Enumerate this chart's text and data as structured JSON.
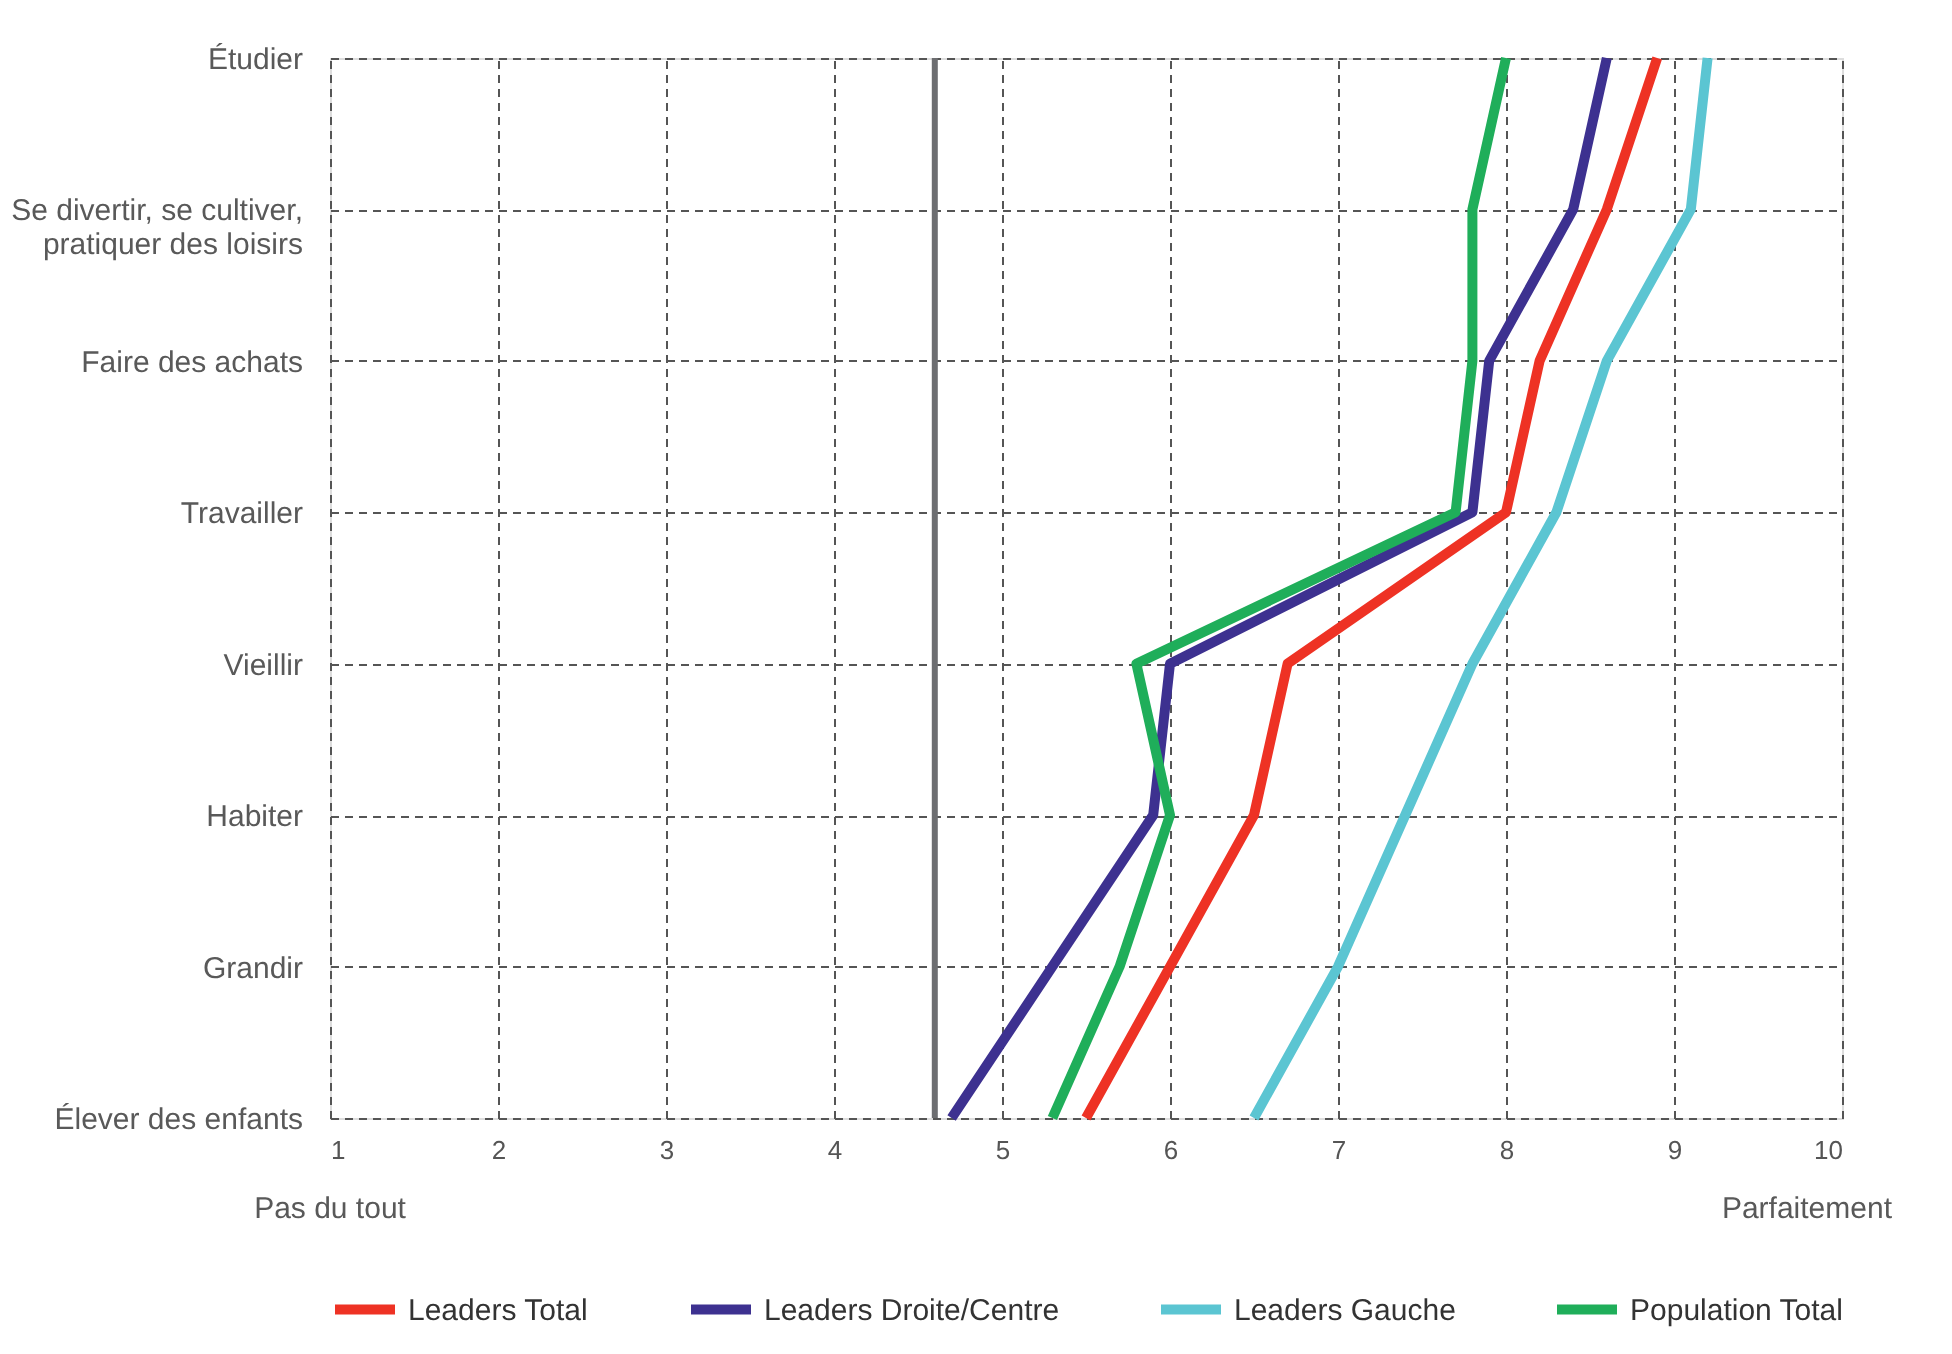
{
  "chart_data": {
    "type": "line",
    "orientation": "horizontal",
    "categories": [
      "Étudier",
      "Se divertir, se cultiver, pratiquer des loisirs",
      "Faire des achats",
      "Travailler",
      "Vieillir",
      "Habiter",
      "Grandir",
      "Élever des enfants"
    ],
    "series": [
      {
        "name": "Leaders Total",
        "color": "#ee3224",
        "values": [
          8.9,
          8.6,
          8.2,
          8.0,
          6.7,
          6.5,
          6.0,
          5.5
        ]
      },
      {
        "name": "Leaders Droite/Centre",
        "color": "#3d3190",
        "values": [
          8.6,
          8.4,
          7.9,
          7.8,
          6.0,
          5.9,
          5.3,
          4.7
        ]
      },
      {
        "name": "Leaders Gauche",
        "color": "#5bc5d2",
        "values": [
          9.2,
          9.1,
          8.6,
          8.3,
          7.8,
          7.4,
          7.0,
          6.5
        ]
      },
      {
        "name": "Population Total",
        "color": "#1fae5a",
        "values": [
          8.0,
          7.8,
          7.8,
          7.7,
          5.8,
          6.0,
          5.7,
          5.3
        ]
      }
    ],
    "xlim": [
      1,
      10
    ],
    "xticks": [
      1,
      2,
      3,
      4,
      5,
      6,
      7,
      8,
      9,
      10
    ],
    "ref_lines": [
      {
        "axis": "x",
        "value": 4.6,
        "color": "#6d6e71"
      }
    ],
    "annotations": [
      "Pas du tout",
      "Parfaitement"
    ],
    "grid": true,
    "legend": "bottom",
    "marker": "none",
    "line_style": "solid"
  }
}
